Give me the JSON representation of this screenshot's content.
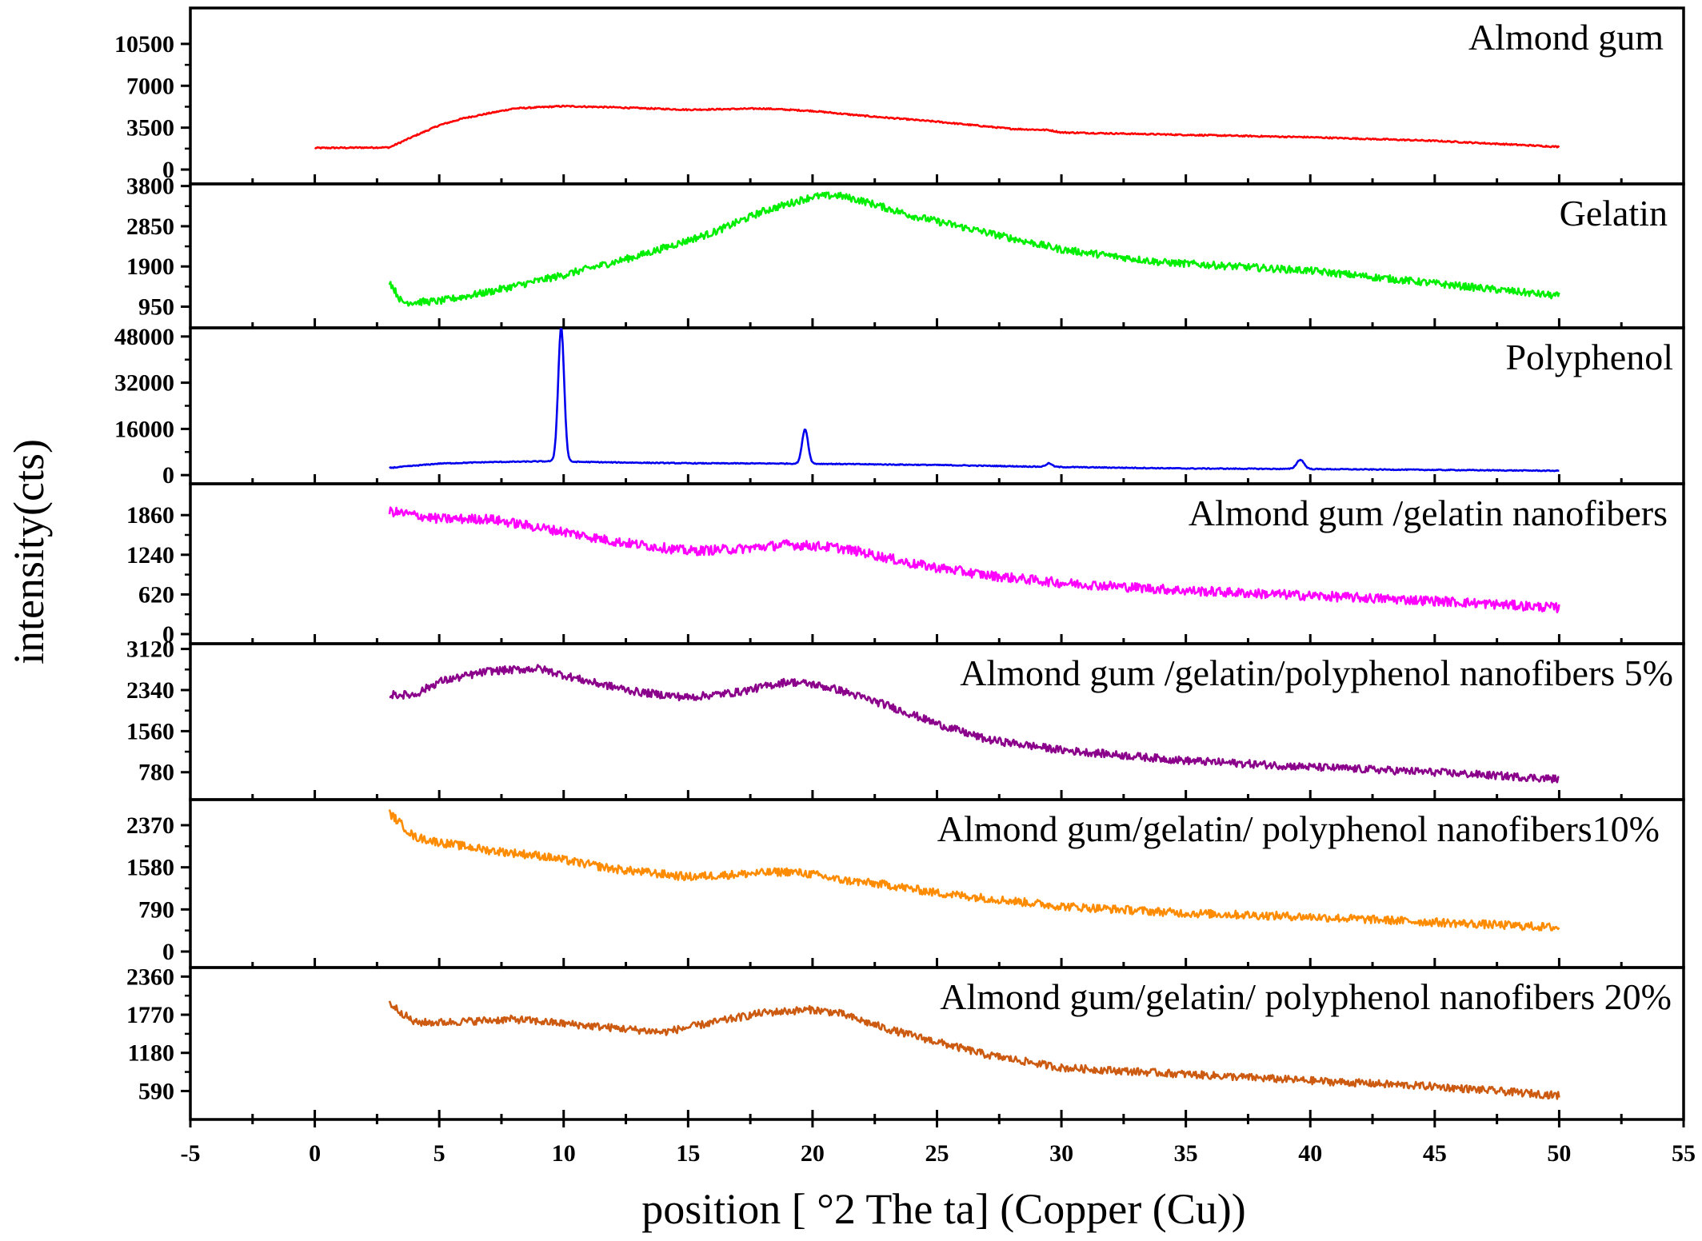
{
  "chart_data": {
    "type": "line",
    "layout": "stacked-panels",
    "xlabel": "position [ °2 The ta] (Copper (Cu))",
    "ylabel": "intensity(cts)",
    "xlim": [
      -5,
      55
    ],
    "xticks": [
      -5,
      0,
      5,
      10,
      15,
      20,
      25,
      30,
      35,
      40,
      45,
      50,
      55
    ],
    "grid": false,
    "legend": "none (each panel labelled top-right)",
    "series": [
      {
        "name": "Almond gum",
        "color": "#ff0000",
        "ylim": [
          -1200,
          13500
        ],
        "yticks": [
          0,
          3500,
          7000,
          10500
        ],
        "noise": 0.004,
        "x": [
          0,
          3,
          4,
          5,
          6,
          8,
          10,
          12,
          15,
          18,
          20,
          22,
          25,
          28,
          29.5,
          30,
          35,
          40,
          45,
          50
        ],
        "y": [
          1800,
          1850,
          2800,
          3700,
          4300,
          5100,
          5300,
          5200,
          5000,
          5100,
          4900,
          4500,
          4000,
          3400,
          3300,
          3100,
          2900,
          2700,
          2400,
          1900
        ]
      },
      {
        "name": "Gelatin",
        "color": "#00ee00",
        "ylim": [
          450,
          3850
        ],
        "yticks": [
          950,
          1900,
          2850,
          3800
        ],
        "noise": 0.025,
        "x": [
          3,
          3.5,
          5,
          7,
          10,
          13,
          16,
          18,
          20,
          21,
          22,
          24,
          27,
          30,
          34,
          40,
          45,
          50
        ],
        "y": [
          1550,
          1050,
          1080,
          1300,
          1700,
          2150,
          2700,
          3200,
          3550,
          3580,
          3450,
          3100,
          2700,
          2300,
          2000,
          1800,
          1500,
          1200
        ]
      },
      {
        "name": "Polyphenol",
        "color": "#0000ee",
        "ylim": [
          -3000,
          51000
        ],
        "yticks": [
          0,
          16000,
          32000,
          48000
        ],
        "noise": 0.003,
        "x": [
          3,
          5,
          7,
          9.5,
          10.5,
          12,
          15,
          19,
          20.5,
          25,
          30,
          35,
          40,
          45,
          50
        ],
        "y": [
          2500,
          4000,
          4500,
          4800,
          4600,
          4400,
          4100,
          4000,
          3900,
          3500,
          2800,
          2300,
          2100,
          1800,
          1500
        ],
        "peaks": [
          {
            "x": 9.9,
            "height": 46500,
            "width": 0.12
          },
          {
            "x": 19.7,
            "height": 12000,
            "width": 0.12
          },
          {
            "x": 29.5,
            "height": 1200,
            "width": 0.12
          },
          {
            "x": 39.6,
            "height": 3200,
            "width": 0.15
          }
        ]
      },
      {
        "name": "Almond gum /gelatin nanofibers",
        "color": "#ff00ff",
        "ylim": [
          -150,
          2350
        ],
        "yticks": [
          0,
          620,
          1240,
          1860
        ],
        "noise": 0.03,
        "x": [
          3,
          5,
          7,
          10,
          12,
          15,
          17,
          19,
          20,
          21,
          22,
          24,
          27,
          30,
          35,
          40,
          45,
          50
        ],
        "y": [
          1920,
          1800,
          1800,
          1600,
          1450,
          1300,
          1330,
          1400,
          1380,
          1350,
          1280,
          1100,
          920,
          800,
          680,
          600,
          520,
          410
        ]
      },
      {
        "name": "Almond gum /gelatin/polyphenol nanofibers 5%",
        "color": "#8b008b",
        "ylim": [
          260,
          3220
        ],
        "yticks": [
          780,
          1560,
          2340,
          3120
        ],
        "noise": 0.025,
        "x": [
          3,
          4,
          5,
          7,
          9,
          11,
          13,
          15,
          17,
          19,
          20,
          21,
          23,
          25,
          27,
          30,
          35,
          40,
          45,
          50
        ],
        "y": [
          2250,
          2250,
          2500,
          2700,
          2750,
          2500,
          2300,
          2200,
          2300,
          2500,
          2450,
          2350,
          2050,
          1700,
          1400,
          1200,
          1000,
          880,
          780,
          650
        ]
      },
      {
        "name": "Almond gum/gelatin/ polyphenol nanofibers10%",
        "color": "#ff8c00",
        "ylim": [
          -300,
          2850
        ],
        "yticks": [
          0,
          790,
          1580,
          2370
        ],
        "noise": 0.025,
        "x": [
          3,
          4,
          5,
          7,
          9,
          12,
          15,
          17,
          19,
          20,
          21,
          23,
          25,
          30,
          35,
          40,
          45,
          50
        ],
        "y": [
          2600,
          2150,
          2050,
          1900,
          1800,
          1550,
          1400,
          1450,
          1500,
          1450,
          1350,
          1250,
          1100,
          850,
          720,
          650,
          550,
          450
        ]
      },
      {
        "name": "Almond gum/gelatin/ polyphenol nanofibers 20%",
        "color": "#cc5a10",
        "ylim": [
          150,
          2500
        ],
        "yticks": [
          590,
          1180,
          1770,
          2360
        ],
        "noise": 0.025,
        "x": [
          3,
          4,
          5,
          8,
          11,
          14,
          16,
          18,
          20,
          21,
          23,
          25,
          27,
          30,
          35,
          40,
          45,
          50
        ],
        "y": [
          1950,
          1650,
          1650,
          1700,
          1600,
          1500,
          1650,
          1800,
          1850,
          1800,
          1550,
          1350,
          1150,
          950,
          850,
          750,
          660,
          520
        ]
      }
    ]
  }
}
